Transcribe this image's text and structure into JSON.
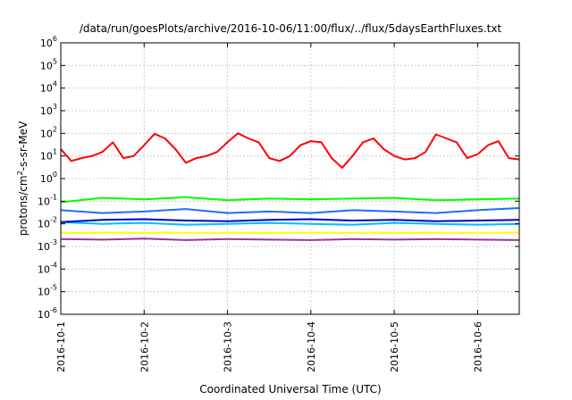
{
  "chart_data": {
    "type": "line",
    "title": "/data/run/goesPlots/archive/2016-10-06/11:00/flux/../flux/5daysEarthFluxes.txt",
    "xlabel": "Coordinated Universal Time (UTC)",
    "ylabel": {
      "pre": "protons/cm",
      "sup": "2",
      "post": "-s-sr-MeV"
    },
    "y_scale": "log",
    "ylim": [
      1e-06,
      1000000.0
    ],
    "xlim": [
      "2016-10-01",
      "2016-10-06 12:00"
    ],
    "grid": true,
    "legend": "none",
    "x_ticks": [
      "2016-10-1",
      "2016-10-2",
      "2016-10-3",
      "2016-10-4",
      "2016-10-5",
      "2016-10-6"
    ],
    "y_ticks": [
      {
        "base": "10",
        "exp": "-6"
      },
      {
        "base": "10",
        "exp": "-5"
      },
      {
        "base": "10",
        "exp": "-4"
      },
      {
        "base": "10",
        "exp": "-3"
      },
      {
        "base": "10",
        "exp": "-2"
      },
      {
        "base": "10",
        "exp": "-1"
      },
      {
        "base": "10",
        "exp": "0"
      },
      {
        "base": "10",
        "exp": "1"
      },
      {
        "base": "10",
        "exp": "2"
      },
      {
        "base": "10",
        "exp": "3"
      },
      {
        "base": "10",
        "exp": "4"
      },
      {
        "base": "10",
        "exp": "5"
      },
      {
        "base": "10",
        "exp": "6"
      }
    ],
    "series": [
      {
        "color": "#ff0000",
        "x": [
          "2016-10-01 00:00",
          "2016-10-01 03:00",
          "2016-10-01 06:00",
          "2016-10-01 09:00",
          "2016-10-01 12:00",
          "2016-10-01 15:00",
          "2016-10-01 18:00",
          "2016-10-01 21:00",
          "2016-10-02 00:00",
          "2016-10-02 03:00",
          "2016-10-02 06:00",
          "2016-10-02 09:00",
          "2016-10-02 12:00",
          "2016-10-02 15:00",
          "2016-10-02 18:00",
          "2016-10-02 21:00",
          "2016-10-03 00:00",
          "2016-10-03 03:00",
          "2016-10-03 06:00",
          "2016-10-03 09:00",
          "2016-10-03 12:00",
          "2016-10-03 15:00",
          "2016-10-03 18:00",
          "2016-10-03 21:00",
          "2016-10-04 00:00",
          "2016-10-04 03:00",
          "2016-10-04 06:00",
          "2016-10-04 09:00",
          "2016-10-04 12:00",
          "2016-10-04 15:00",
          "2016-10-04 18:00",
          "2016-10-04 21:00",
          "2016-10-05 00:00",
          "2016-10-05 03:00",
          "2016-10-05 06:00",
          "2016-10-05 09:00",
          "2016-10-05 12:00",
          "2016-10-05 15:00",
          "2016-10-05 18:00",
          "2016-10-05 21:00",
          "2016-10-06 00:00",
          "2016-10-06 03:00",
          "2016-10-06 06:00",
          "2016-10-06 09:00",
          "2016-10-06 12:00"
        ],
        "y": [
          20,
          6,
          8,
          10,
          15,
          40,
          8,
          10,
          30,
          95,
          60,
          20,
          5,
          8,
          10,
          15,
          40,
          100,
          60,
          40,
          8,
          6,
          10,
          30,
          45,
          40,
          8,
          3,
          10,
          40,
          60,
          20,
          10,
          7,
          8,
          15,
          90,
          60,
          40,
          8,
          12,
          30,
          45,
          8,
          7
        ]
      },
      {
        "color": "#00ff00",
        "x": [
          "2016-10-01 00:00",
          "2016-10-01 12:00",
          "2016-10-02 00:00",
          "2016-10-02 12:00",
          "2016-10-03 00:00",
          "2016-10-03 12:00",
          "2016-10-04 00:00",
          "2016-10-04 12:00",
          "2016-10-05 00:00",
          "2016-10-05 12:00",
          "2016-10-06 00:00",
          "2016-10-06 12:00"
        ],
        "y": [
          0.09,
          0.14,
          0.12,
          0.15,
          0.11,
          0.13,
          0.12,
          0.13,
          0.14,
          0.11,
          0.12,
          0.13
        ]
      },
      {
        "color": "#00bfff",
        "x": [
          "2016-10-01 00:00",
          "2016-10-01 12:00",
          "2016-10-02 00:00",
          "2016-10-02 12:00",
          "2016-10-03 00:00",
          "2016-10-03 12:00",
          "2016-10-04 00:00",
          "2016-10-04 12:00",
          "2016-10-05 00:00",
          "2016-10-05 12:00",
          "2016-10-06 00:00",
          "2016-10-06 12:00"
        ],
        "y": [
          0.012,
          0.01,
          0.011,
          0.009,
          0.01,
          0.011,
          0.01,
          0.009,
          0.011,
          0.01,
          0.009,
          0.01
        ]
      },
      {
        "color": "#1e6bff",
        "x": [
          "2016-10-01 00:00",
          "2016-10-01 12:00",
          "2016-10-02 00:00",
          "2016-10-02 12:00",
          "2016-10-03 00:00",
          "2016-10-03 12:00",
          "2016-10-04 00:00",
          "2016-10-04 12:00",
          "2016-10-05 00:00",
          "2016-10-05 12:00",
          "2016-10-06 00:00",
          "2016-10-06 12:00"
        ],
        "y": [
          0.04,
          0.03,
          0.035,
          0.045,
          0.03,
          0.035,
          0.03,
          0.04,
          0.035,
          0.03,
          0.04,
          0.05
        ]
      },
      {
        "color": "#0000cc",
        "x": [
          "2016-10-01 00:00",
          "2016-10-01 12:00",
          "2016-10-02 00:00",
          "2016-10-02 12:00",
          "2016-10-03 00:00",
          "2016-10-03 12:00",
          "2016-10-04 00:00",
          "2016-10-04 12:00",
          "2016-10-05 00:00",
          "2016-10-05 12:00",
          "2016-10-06 00:00",
          "2016-10-06 12:00"
        ],
        "y": [
          0.012,
          0.015,
          0.016,
          0.014,
          0.013,
          0.015,
          0.016,
          0.014,
          0.015,
          0.013,
          0.014,
          0.015
        ]
      },
      {
        "color": "#ffff00",
        "x": [
          "2016-10-01 00:00",
          "2016-10-06 12:00"
        ],
        "y": [
          0.004,
          0.004
        ]
      },
      {
        "color": "#993399",
        "x": [
          "2016-10-01 00:00",
          "2016-10-01 12:00",
          "2016-10-02 00:00",
          "2016-10-02 12:00",
          "2016-10-03 00:00",
          "2016-10-03 12:00",
          "2016-10-04 00:00",
          "2016-10-04 12:00",
          "2016-10-05 00:00",
          "2016-10-05 12:00",
          "2016-10-06 00:00",
          "2016-10-06 12:00"
        ],
        "y": [
          0.0021,
          0.002,
          0.0022,
          0.0019,
          0.0021,
          0.002,
          0.0019,
          0.0021,
          0.002,
          0.0021,
          0.002,
          0.0019
        ]
      }
    ]
  }
}
